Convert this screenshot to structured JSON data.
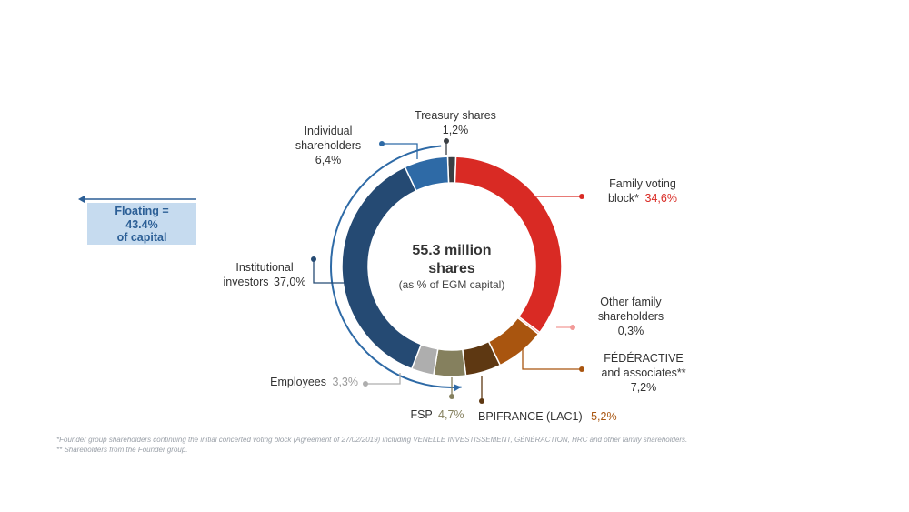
{
  "chart_data": {
    "type": "donut",
    "center": {
      "title_line1": "55.3 million",
      "title_line2": "shares",
      "subtitle": "(as % of EGM capital)"
    },
    "slices": [
      {
        "key": "treasury",
        "name_lines": [
          "Treasury shares"
        ],
        "value": 1.2,
        "value_label": "1,2%",
        "color": "#3a3f44",
        "label_color": "#555555"
      },
      {
        "key": "family",
        "name_lines": [
          "Family voting",
          "block*"
        ],
        "value": 34.6,
        "value_label": "34,6%",
        "color": "#d92a24",
        "label_color": "#d92a24"
      },
      {
        "key": "otherfam",
        "name_lines": [
          "Other family",
          "shareholders"
        ],
        "value": 0.3,
        "value_label": "0,3%",
        "color": "#f29a98",
        "label_color": "#f29a98"
      },
      {
        "key": "federactive",
        "name_lines": [
          "FÉDÉRACTIVE",
          "and associates**"
        ],
        "value": 7.2,
        "value_label": "7,2%",
        "color": "#a9550f",
        "label_color": "#b5651d"
      },
      {
        "key": "bpifrance",
        "name_lines": [
          "BPIFRANCE (LAC1)"
        ],
        "value": 5.2,
        "value_label": "5,2%",
        "color": "#5e3812",
        "label_color": "#a9550f"
      },
      {
        "key": "fsp",
        "name_lines": [
          "FSP"
        ],
        "value": 4.7,
        "value_label": "4,7%",
        "color": "#85805e",
        "label_color": "#85805e"
      },
      {
        "key": "employees",
        "name_lines": [
          "Employees"
        ],
        "value": 3.3,
        "value_label": "3,3%",
        "color": "#aeaeae",
        "label_color": "#999999"
      },
      {
        "key": "institutional",
        "name_lines": [
          "Institutional",
          "investors"
        ],
        "value": 37.0,
        "value_label": "37,0%",
        "color": "#254a73",
        "label_color": "#333333"
      },
      {
        "key": "individual",
        "name_lines": [
          "Individual",
          "shareholders"
        ],
        "value": 6.4,
        "value_label": "6,4%",
        "color": "#2e6aa6",
        "label_color": "#2e6aa6"
      }
    ]
  },
  "floating": {
    "line1": "Floating =",
    "line2": "43.4%",
    "line3": "of capital",
    "color": "#2c5f96"
  },
  "footnotes": {
    "note1": "*Founder group shareholders continuing the initial concerted voting block (Agreement of 27/02/2019) including VENELLE INVESTISSEMENT, GÉNÉRACTION, HRC and other family shareholders.",
    "note2": "** Shareholders from the Founder group."
  }
}
